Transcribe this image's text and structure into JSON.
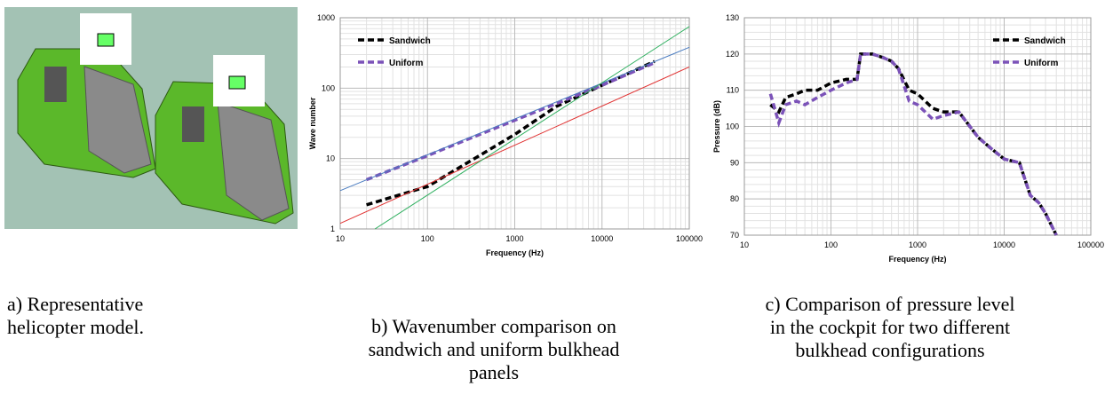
{
  "chart_data": [
    {
      "type": "line",
      "ylabel": "Wave number",
      "xlabel": "Frequency (Hz)",
      "xscale": "log",
      "yscale": "log",
      "xlim": [
        10,
        100000
      ],
      "ylim": [
        1,
        1000
      ],
      "xticks": [
        10,
        100,
        1000,
        10000,
        100000
      ],
      "yticks": [
        1,
        10,
        100,
        1000
      ],
      "grid": true,
      "minor_grid": true,
      "legend": "upper left",
      "series": [
        {
          "name": "Sandwich",
          "color": "#000000",
          "line_style": "dashed",
          "x": [
            20,
            50,
            100,
            300,
            1000,
            3000,
            10000,
            40000
          ],
          "values": [
            2.2,
            3.1,
            4,
            9,
            22,
            55,
            110,
            240
          ]
        },
        {
          "name": "Uniform",
          "color": "#7b52b8",
          "line_style": "dashed",
          "x": [
            20,
            100,
            1000,
            10000,
            40000
          ],
          "values": [
            5,
            11,
            35,
            110,
            230
          ]
        },
        {
          "color": "#4a7cc0",
          "line_style": "solid",
          "x": [
            10,
            100000
          ],
          "values": [
            3.5,
            380
          ]
        },
        {
          "color": "#e03030",
          "line_style": "solid",
          "x": [
            10,
            100000
          ],
          "values": [
            1.2,
            200
          ]
        },
        {
          "color": "#30b060",
          "line_style": "solid",
          "x": [
            25,
            100000
          ],
          "values": [
            1,
            750
          ]
        }
      ]
    },
    {
      "type": "line",
      "ylabel": "Pressure (dB)",
      "xlabel": "Frequency (Hz)",
      "xscale": "log",
      "xlim": [
        10,
        100000
      ],
      "ylim": [
        70,
        130
      ],
      "xticks": [
        10,
        100,
        1000,
        10000,
        100000
      ],
      "yticks": [
        70,
        80,
        90,
        100,
        110,
        120,
        130
      ],
      "grid": true,
      "minor_grid": true,
      "legend": "upper right",
      "x": [
        20,
        25,
        30,
        40,
        50,
        70,
        100,
        150,
        200,
        220,
        300,
        400,
        500,
        600,
        800,
        1000,
        1500,
        2000,
        3000,
        5000,
        7000,
        10000,
        15000,
        20000,
        25000,
        30000,
        40000
      ],
      "series": [
        {
          "name": "Sandwich",
          "color": "#000000",
          "line_style": "dashed",
          "values": [
            106,
            104,
            108,
            109,
            110,
            110,
            112,
            113,
            113,
            120,
            120,
            119,
            118,
            116,
            110,
            109,
            105,
            104,
            104,
            97,
            94,
            91,
            90,
            81,
            79,
            76,
            70
          ]
        },
        {
          "name": "Uniform",
          "color": "#7b52b8",
          "line_style": "dashed",
          "values": [
            109,
            101,
            106,
            107,
            106,
            108,
            110,
            112,
            113,
            120,
            120,
            119,
            118,
            116,
            107,
            106,
            102,
            103,
            104,
            97,
            94,
            91,
            90,
            81,
            79,
            76,
            70
          ]
        }
      ]
    }
  ],
  "captions": [
    [
      "a) Representative",
      "helicopter model."
    ],
    [
      "b) Wavenumber comparison on",
      "sandwich and uniform bulkhead",
      "panels"
    ],
    [
      "c)  Comparison of pressure level",
      "in the cockpit for two different",
      "bulkhead configurations"
    ]
  ]
}
